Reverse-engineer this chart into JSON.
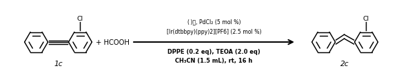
{
  "figsize": [
    6.198,
    1.28
  ],
  "dpi": 96,
  "bg_color": "#ffffff",
  "reactant_label": "1c",
  "product_label": "2c",
  "arrow_line1": "( )光, PdCl₂ (5 mol %)",
  "arrow_line2": "[Ir(dtbbpy)(ppy)2][PF6] (2.5 mol %)",
  "arrow_line3": "DPPE (0.2 eq), TEOA (2.0 eq)",
  "arrow_line4": "CH₃CN (1.5 mL), rt, 16 h",
  "text_color": "#000000",
  "font_size_conditions": 5.8,
  "font_size_labels": 8,
  "font_size_bold": 6.2
}
